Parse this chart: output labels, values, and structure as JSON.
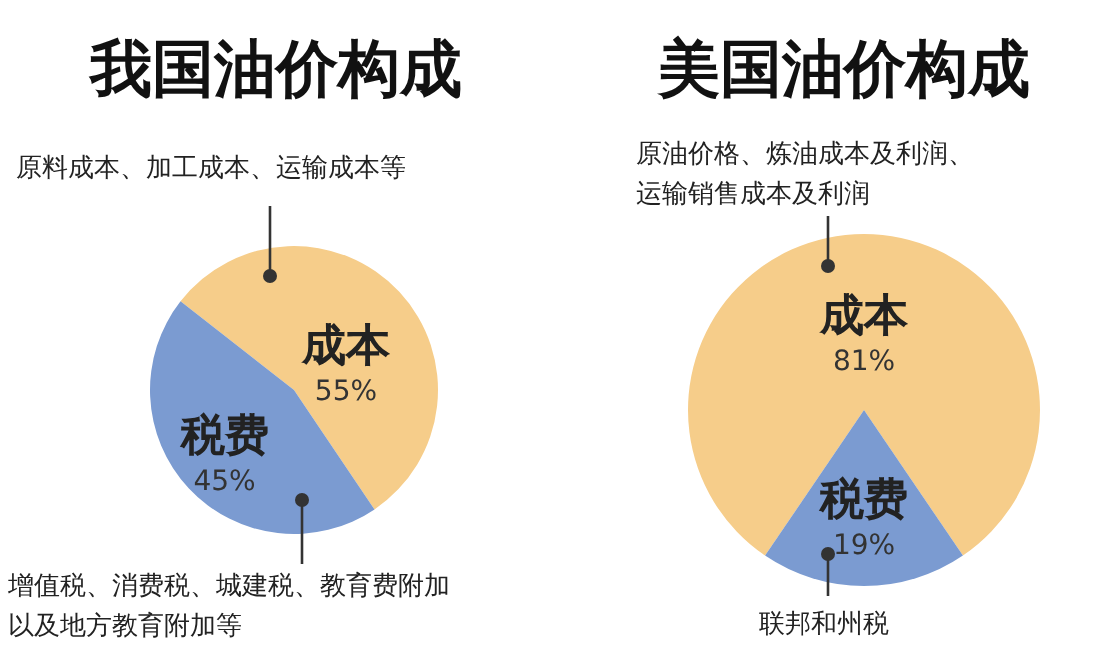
{
  "chart_data": [
    {
      "type": "pie",
      "title": "我国油价构成",
      "categories": [
        "成本",
        "税费"
      ],
      "values": [
        55,
        45
      ],
      "colors": [
        "#f6cd8a",
        "#7b9bd1"
      ],
      "value_labels": [
        "55%",
        "45%"
      ],
      "annotations": [
        "原料成本、加工成本、运输成本等",
        "增值税、消费税、城建税、教育费附加以及地方教育附加等"
      ]
    },
    {
      "type": "pie",
      "title": "美国油价构成",
      "categories": [
        "成本",
        "税费"
      ],
      "values": [
        81,
        19
      ],
      "colors": [
        "#f6cd8a",
        "#7b9bd1"
      ],
      "value_labels": [
        "81%",
        "19%"
      ],
      "annotations": [
        "原油价格、炼油成本及利润、运输销售成本及利润",
        "联邦和州税"
      ]
    }
  ]
}
